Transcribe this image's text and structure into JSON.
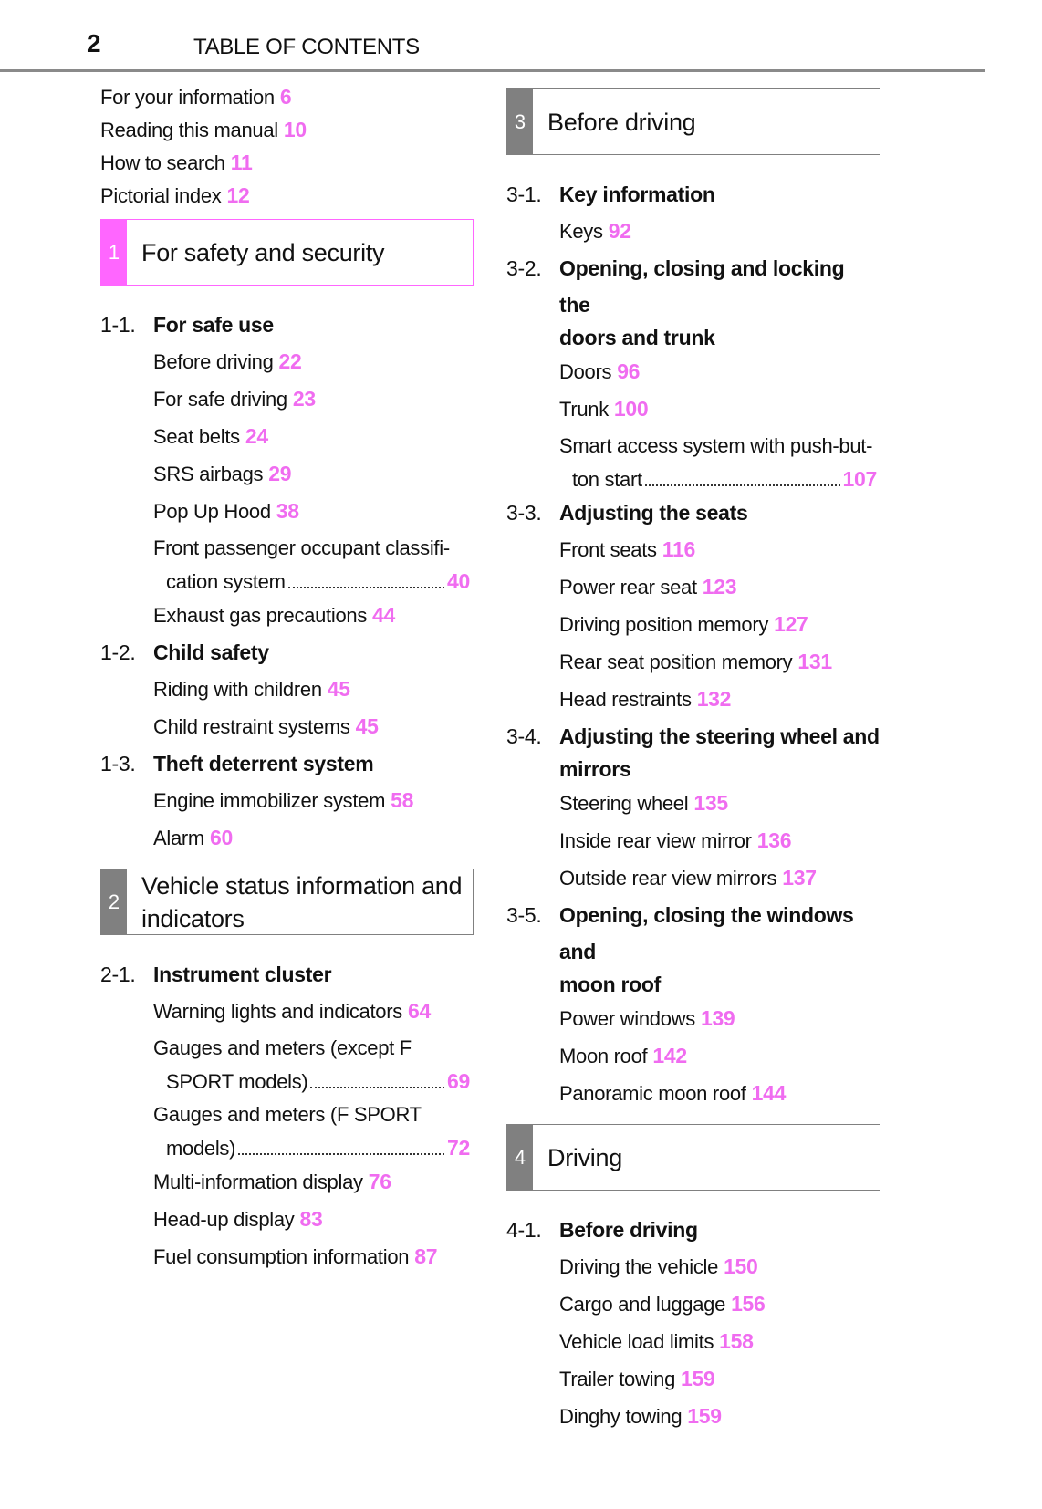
{
  "header": {
    "page_number": "2",
    "title": "TABLE OF CONTENTS"
  },
  "colors": {
    "pink": "#ff66ff",
    "gray": "#808080",
    "page_link": "#f06cf0"
  },
  "left": [
    {
      "type": "intro",
      "lines": [
        "For your information"
      ],
      "page": "6"
    },
    {
      "type": "intro",
      "lines": [
        "Reading this manual"
      ],
      "page": "10"
    },
    {
      "type": "intro",
      "lines": [
        "How to search"
      ],
      "page": "11"
    },
    {
      "type": "intro",
      "lines": [
        "Pictorial index"
      ],
      "page": "12"
    },
    {
      "type": "box",
      "number": "1",
      "title": [
        "For safety and security"
      ],
      "color": "#ff66ff"
    },
    {
      "type": "group",
      "number": "1-1.",
      "title": [
        "For safe use"
      ]
    },
    {
      "type": "entry",
      "lines": [
        "Before driving"
      ],
      "page": "22"
    },
    {
      "type": "entry",
      "lines": [
        "For safe driving"
      ],
      "page": "23"
    },
    {
      "type": "entry",
      "lines": [
        "Seat belts"
      ],
      "page": "24"
    },
    {
      "type": "entry",
      "lines": [
        "SRS airbags"
      ],
      "page": "29"
    },
    {
      "type": "entry",
      "lines": [
        "Pop Up Hood"
      ],
      "page": "38"
    },
    {
      "type": "entry",
      "lines": [
        "Front passenger occupant classifi-",
        "cation system"
      ],
      "page": "40"
    },
    {
      "type": "entry",
      "lines": [
        "Exhaust gas precautions"
      ],
      "page": "44"
    },
    {
      "type": "group",
      "number": "1-2.",
      "title": [
        "Child safety"
      ]
    },
    {
      "type": "entry",
      "lines": [
        "Riding with children"
      ],
      "page": "45"
    },
    {
      "type": "entry",
      "lines": [
        "Child restraint systems"
      ],
      "page": "45"
    },
    {
      "type": "group",
      "number": "1-3.",
      "title": [
        "Theft deterrent system"
      ]
    },
    {
      "type": "entry",
      "lines": [
        "Engine immobilizer system"
      ],
      "page": "58"
    },
    {
      "type": "entry",
      "lines": [
        "Alarm"
      ],
      "page": "60"
    },
    {
      "type": "box",
      "number": "2",
      "title": [
        "Vehicle status information and",
        "indicators"
      ],
      "color": "#808080"
    },
    {
      "type": "group",
      "number": "2-1.",
      "title": [
        "Instrument cluster"
      ]
    },
    {
      "type": "entry",
      "lines": [
        "Warning lights and indicators"
      ],
      "page": "64"
    },
    {
      "type": "entry",
      "lines": [
        "Gauges and meters (except F",
        "SPORT models)"
      ],
      "page": "69"
    },
    {
      "type": "entry",
      "lines": [
        "Gauges and meters (F SPORT",
        "models)"
      ],
      "page": "72"
    },
    {
      "type": "entry",
      "lines": [
        "Multi-information display"
      ],
      "page": "76"
    },
    {
      "type": "entry",
      "lines": [
        "Head-up display"
      ],
      "page": "83"
    },
    {
      "type": "entry",
      "lines": [
        "Fuel consumption information"
      ],
      "page": "87"
    }
  ],
  "right": [
    {
      "type": "box",
      "number": "3",
      "title": [
        "Before driving"
      ],
      "color": "#808080"
    },
    {
      "type": "group",
      "number": "3-1.",
      "title": [
        "Key information"
      ]
    },
    {
      "type": "entry",
      "lines": [
        "Keys"
      ],
      "page": "92"
    },
    {
      "type": "group",
      "number": "3-2.",
      "title": [
        "Opening, closing and locking the",
        "doors and trunk"
      ]
    },
    {
      "type": "entry",
      "lines": [
        "Doors"
      ],
      "page": "96"
    },
    {
      "type": "entry",
      "lines": [
        "Trunk"
      ],
      "page": "100"
    },
    {
      "type": "entry",
      "lines": [
        "Smart access system with push-but-",
        "ton start"
      ],
      "page": "107"
    },
    {
      "type": "group",
      "number": "3-3.",
      "title": [
        "Adjusting the seats"
      ]
    },
    {
      "type": "entry",
      "lines": [
        "Front seats"
      ],
      "page": "116"
    },
    {
      "type": "entry",
      "lines": [
        "Power rear seat"
      ],
      "page": "123"
    },
    {
      "type": "entry",
      "lines": [
        "Driving position memory"
      ],
      "page": "127"
    },
    {
      "type": "entry",
      "lines": [
        "Rear seat position memory"
      ],
      "page": "131"
    },
    {
      "type": "entry",
      "lines": [
        "Head restraints"
      ],
      "page": "132"
    },
    {
      "type": "group",
      "number": "3-4.",
      "title": [
        "Adjusting the steering wheel and",
        "mirrors"
      ]
    },
    {
      "type": "entry",
      "lines": [
        "Steering wheel"
      ],
      "page": "135"
    },
    {
      "type": "entry",
      "lines": [
        "Inside rear view mirror"
      ],
      "page": "136"
    },
    {
      "type": "entry",
      "lines": [
        "Outside rear view mirrors"
      ],
      "page": "137"
    },
    {
      "type": "group",
      "number": "3-5.",
      "title": [
        "Opening, closing the windows and",
        "moon roof"
      ]
    },
    {
      "type": "entry",
      "lines": [
        "Power windows"
      ],
      "page": "139"
    },
    {
      "type": "entry",
      "lines": [
        "Moon roof"
      ],
      "page": "142"
    },
    {
      "type": "entry",
      "lines": [
        "Panoramic moon roof"
      ],
      "page": "144"
    },
    {
      "type": "box",
      "number": "4",
      "title": [
        "Driving"
      ],
      "color": "#808080"
    },
    {
      "type": "group",
      "number": "4-1.",
      "title": [
        "Before driving"
      ]
    },
    {
      "type": "entry",
      "lines": [
        "Driving the vehicle"
      ],
      "page": "150"
    },
    {
      "type": "entry",
      "lines": [
        "Cargo and luggage"
      ],
      "page": "156"
    },
    {
      "type": "entry",
      "lines": [
        "Vehicle load limits"
      ],
      "page": "158"
    },
    {
      "type": "entry",
      "lines": [
        "Trailer towing"
      ],
      "page": "159"
    },
    {
      "type": "entry",
      "lines": [
        "Dinghy towing"
      ],
      "page": "159"
    }
  ]
}
